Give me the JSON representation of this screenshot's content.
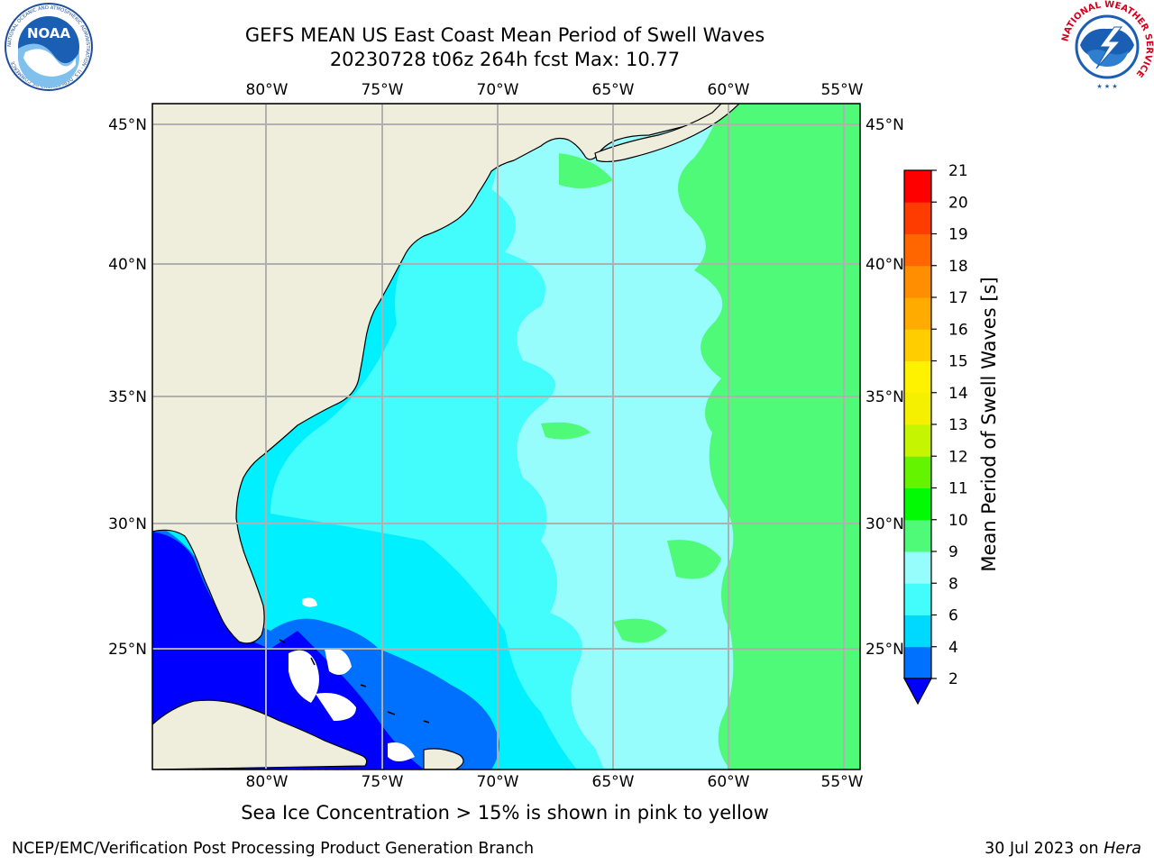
{
  "title_line1": "GEFS MEAN US East Coast Mean Period of Swell Waves",
  "title_line2": "20230728 t06z 264h fcst   Max: 10.77",
  "map": {
    "lon_labels": [
      "80°W",
      "75°W",
      "70°W",
      "65°W",
      "60°W",
      "55°W"
    ],
    "lat_labels": [
      "45°N",
      "40°N",
      "35°N",
      "30°N",
      "25°N"
    ],
    "lon_range": [
      -85,
      -54
    ],
    "lat_range": [
      20,
      46
    ],
    "colors": {
      "land": "#efeedc",
      "no_data": "#ffffff",
      "grid": "#b0b0b0",
      "coast": "#000000"
    }
  },
  "colorbar": {
    "label": "Mean Period of Swell Waves [s]",
    "ticks": [
      "21",
      "20",
      "19",
      "18",
      "17",
      "16",
      "15",
      "14",
      "13",
      "12",
      "11",
      "10",
      "9",
      "8",
      "6",
      "4",
      "2"
    ],
    "colors_low_to_high": [
      "#0070ff",
      "#00d9ff",
      "#43fcfc",
      "#97fcfc",
      "#4efa78",
      "#02fa04",
      "#64f400",
      "#c6f500",
      "#f5ef00",
      "#fff200",
      "#ffcd00",
      "#ffab00",
      "#ff8e00",
      "#ff6600",
      "#ff3c00",
      "#ff0000"
    ],
    "under_color": "#0000ff"
  },
  "ice_note": "Sea Ice Concentration > 15% is shown in pink to yellow",
  "footer_left": "NCEP/EMC/Verification Post Processing Product Generation Branch",
  "footer_right_date": "30 Jul 2023 on ",
  "footer_right_host": "Hera",
  "logos": {
    "noaa_text": "NOAA",
    "noaa_ring_text": "NATIONAL OCEANIC AND ATMOSPHERIC ADMINISTRATION · U.S. DEPARTMENT OF COMMERCE",
    "nws_ring_text": "NATIONAL WEATHER SERVICE"
  }
}
